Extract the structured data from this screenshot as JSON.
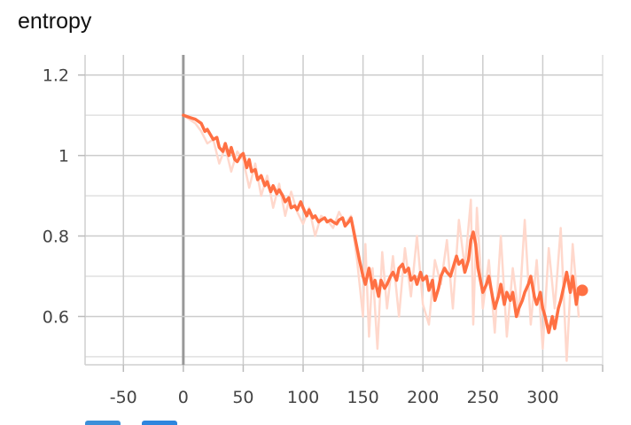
{
  "chart_data": {
    "type": "line",
    "title": "entropy",
    "xlabel": "",
    "ylabel": "",
    "xlim": [
      -82,
      350
    ],
    "ylim": [
      0.48,
      1.25
    ],
    "x_ticks": [
      -50,
      0,
      50,
      100,
      150,
      200,
      250,
      300
    ],
    "x_tick_labels": [
      "-50",
      "0",
      "50",
      "100",
      "150",
      "200",
      "250",
      "300"
    ],
    "y_ticks": [
      0.6,
      0.8,
      1.0,
      1.2
    ],
    "y_tick_labels": [
      "0.6",
      "0.8",
      "1",
      "1.2"
    ],
    "grid": true,
    "colors": {
      "smoothed": "#ff7043",
      "raw": "#ffd8cc",
      "grid": "#cccccc",
      "axis_zero": "#999999"
    },
    "series": [
      {
        "role": "raw",
        "x": [
          0,
          5,
          10,
          15,
          20,
          25,
          30,
          35,
          40,
          45,
          50,
          55,
          60,
          65,
          70,
          75,
          80,
          85,
          90,
          95,
          100,
          105,
          110,
          115,
          120,
          125,
          130,
          135,
          140,
          145,
          150,
          152,
          155,
          158,
          162,
          166,
          170,
          175,
          180,
          185,
          190,
          195,
          200,
          205,
          210,
          215,
          220,
          225,
          230,
          235,
          240,
          242,
          245,
          250,
          255,
          260,
          265,
          270,
          275,
          280,
          285,
          290,
          295,
          300,
          305,
          310,
          315,
          320,
          325,
          330
        ],
        "y": [
          1.1,
          1.09,
          1.08,
          1.06,
          1.03,
          1.04,
          0.98,
          1.02,
          0.96,
          1.01,
          0.99,
          0.92,
          0.98,
          0.9,
          0.95,
          0.87,
          0.93,
          0.85,
          0.91,
          0.86,
          0.83,
          0.87,
          0.8,
          0.85,
          0.84,
          0.82,
          0.86,
          0.83,
          0.85,
          0.74,
          0.6,
          0.78,
          0.55,
          0.72,
          0.52,
          0.76,
          0.62,
          0.75,
          0.6,
          0.77,
          0.65,
          0.8,
          0.63,
          0.58,
          0.74,
          0.68,
          0.79,
          0.62,
          0.84,
          0.72,
          0.89,
          0.58,
          0.87,
          0.62,
          0.74,
          0.56,
          0.8,
          0.55,
          0.72,
          0.6,
          0.84,
          0.58,
          0.74,
          0.52,
          0.77,
          0.62,
          0.82,
          0.49,
          0.78,
          0.6
        ]
      },
      {
        "role": "smoothed",
        "x": [
          0,
          5,
          10,
          15,
          18,
          20,
          25,
          28,
          30,
          33,
          35,
          38,
          40,
          43,
          45,
          48,
          50,
          53,
          55,
          57,
          60,
          62,
          65,
          68,
          70,
          73,
          75,
          78,
          80,
          83,
          85,
          88,
          90,
          93,
          95,
          98,
          100,
          103,
          105,
          108,
          110,
          113,
          115,
          118,
          120,
          123,
          125,
          128,
          130,
          133,
          135,
          138,
          140,
          143,
          145,
          147,
          150,
          152,
          155,
          158,
          160,
          163,
          165,
          168,
          170,
          173,
          175,
          178,
          180,
          183,
          185,
          188,
          190,
          193,
          195,
          198,
          200,
          203,
          205,
          208,
          210,
          213,
          215,
          218,
          220,
          223,
          225,
          228,
          230,
          233,
          235,
          238,
          240,
          242,
          244,
          246,
          248,
          250,
          253,
          255,
          258,
          260,
          263,
          265,
          268,
          270,
          273,
          275,
          278,
          280,
          283,
          285,
          288,
          290,
          293,
          295,
          298,
          300,
          302,
          305,
          308,
          310,
          313,
          315,
          318,
          320,
          323,
          325,
          328,
          330
        ],
        "y": [
          1.1,
          1.095,
          1.09,
          1.08,
          1.06,
          1.065,
          1.04,
          1.045,
          1.02,
          1.01,
          1.03,
          1.0,
          1.02,
          0.99,
          0.985,
          1.0,
          1.005,
          0.97,
          0.99,
          0.96,
          0.965,
          0.94,
          0.95,
          0.925,
          0.935,
          0.91,
          0.925,
          0.905,
          0.915,
          0.9,
          0.885,
          0.895,
          0.87,
          0.875,
          0.865,
          0.885,
          0.87,
          0.85,
          0.865,
          0.845,
          0.85,
          0.835,
          0.84,
          0.845,
          0.835,
          0.84,
          0.835,
          0.83,
          0.84,
          0.845,
          0.825,
          0.835,
          0.845,
          0.8,
          0.77,
          0.74,
          0.7,
          0.68,
          0.72,
          0.67,
          0.69,
          0.65,
          0.69,
          0.67,
          0.68,
          0.7,
          0.71,
          0.69,
          0.72,
          0.73,
          0.71,
          0.72,
          0.69,
          0.7,
          0.68,
          0.71,
          0.69,
          0.7,
          0.665,
          0.69,
          0.64,
          0.67,
          0.7,
          0.72,
          0.71,
          0.7,
          0.72,
          0.75,
          0.73,
          0.74,
          0.71,
          0.74,
          0.79,
          0.81,
          0.78,
          0.72,
          0.69,
          0.66,
          0.68,
          0.7,
          0.65,
          0.62,
          0.65,
          0.68,
          0.63,
          0.66,
          0.64,
          0.66,
          0.6,
          0.62,
          0.64,
          0.66,
          0.68,
          0.7,
          0.65,
          0.63,
          0.66,
          0.62,
          0.6,
          0.56,
          0.6,
          0.57,
          0.62,
          0.64,
          0.68,
          0.71,
          0.66,
          0.7,
          0.63,
          0.67
        ]
      }
    ],
    "end_marker": {
      "x": 333,
      "y": 0.665
    }
  },
  "toolbar": {
    "button_colors": [
      "#3b8fd9",
      "#2e86de"
    ]
  }
}
